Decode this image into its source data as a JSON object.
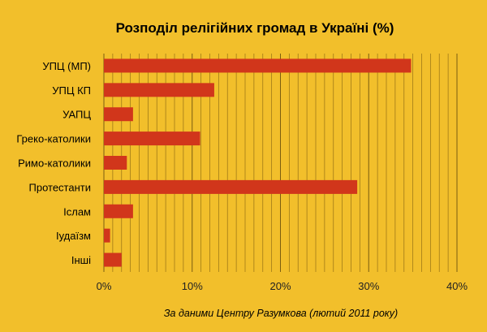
{
  "chart_data": {
    "type": "bar",
    "orientation": "horizontal",
    "title": "Розподіл релігійних громад в Україні (%)",
    "categories": [
      "УПЦ (МП)",
      "УПЦ КП",
      "УАПЦ",
      "Греко-католики",
      "Римо-католики",
      "Протестанти",
      "Іслам",
      "Іудаїзм",
      "Інші"
    ],
    "values": [
      34.8,
      12.5,
      3.3,
      10.9,
      2.6,
      28.7,
      3.3,
      0.7,
      2.0
    ],
    "xlim": [
      0,
      40
    ],
    "x_ticks": [
      "0%",
      "10%",
      "20%",
      "30%",
      "40%"
    ],
    "grid": true,
    "bar_color": "#d1361b",
    "background_color": "#f2bf2b",
    "source": "За даними Центру Разумкова (лютий 2011 року)"
  }
}
